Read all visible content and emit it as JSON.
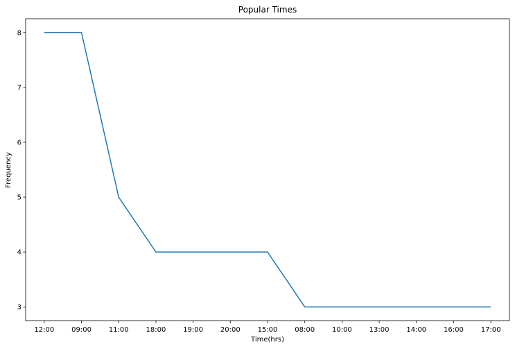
{
  "chart_data": {
    "type": "line",
    "title": "Popular Times",
    "xlabel": "Time(hrs)",
    "ylabel": "Frequency",
    "categories": [
      "12:00",
      "09:00",
      "11:00",
      "18:00",
      "19:00",
      "20:00",
      "15:00",
      "08:00",
      "10:00",
      "13:00",
      "14:00",
      "16:00",
      "17:00"
    ],
    "series": [
      {
        "values": [
          8,
          8,
          5,
          4,
          4,
          4,
          4,
          3,
          3,
          3,
          3,
          3,
          3
        ]
      }
    ],
    "yticks": [
      3,
      4,
      5,
      6,
      7,
      8
    ],
    "ylim": [
      2.75,
      8.25
    ],
    "grid": false,
    "line_color": "#1f77b4"
  }
}
